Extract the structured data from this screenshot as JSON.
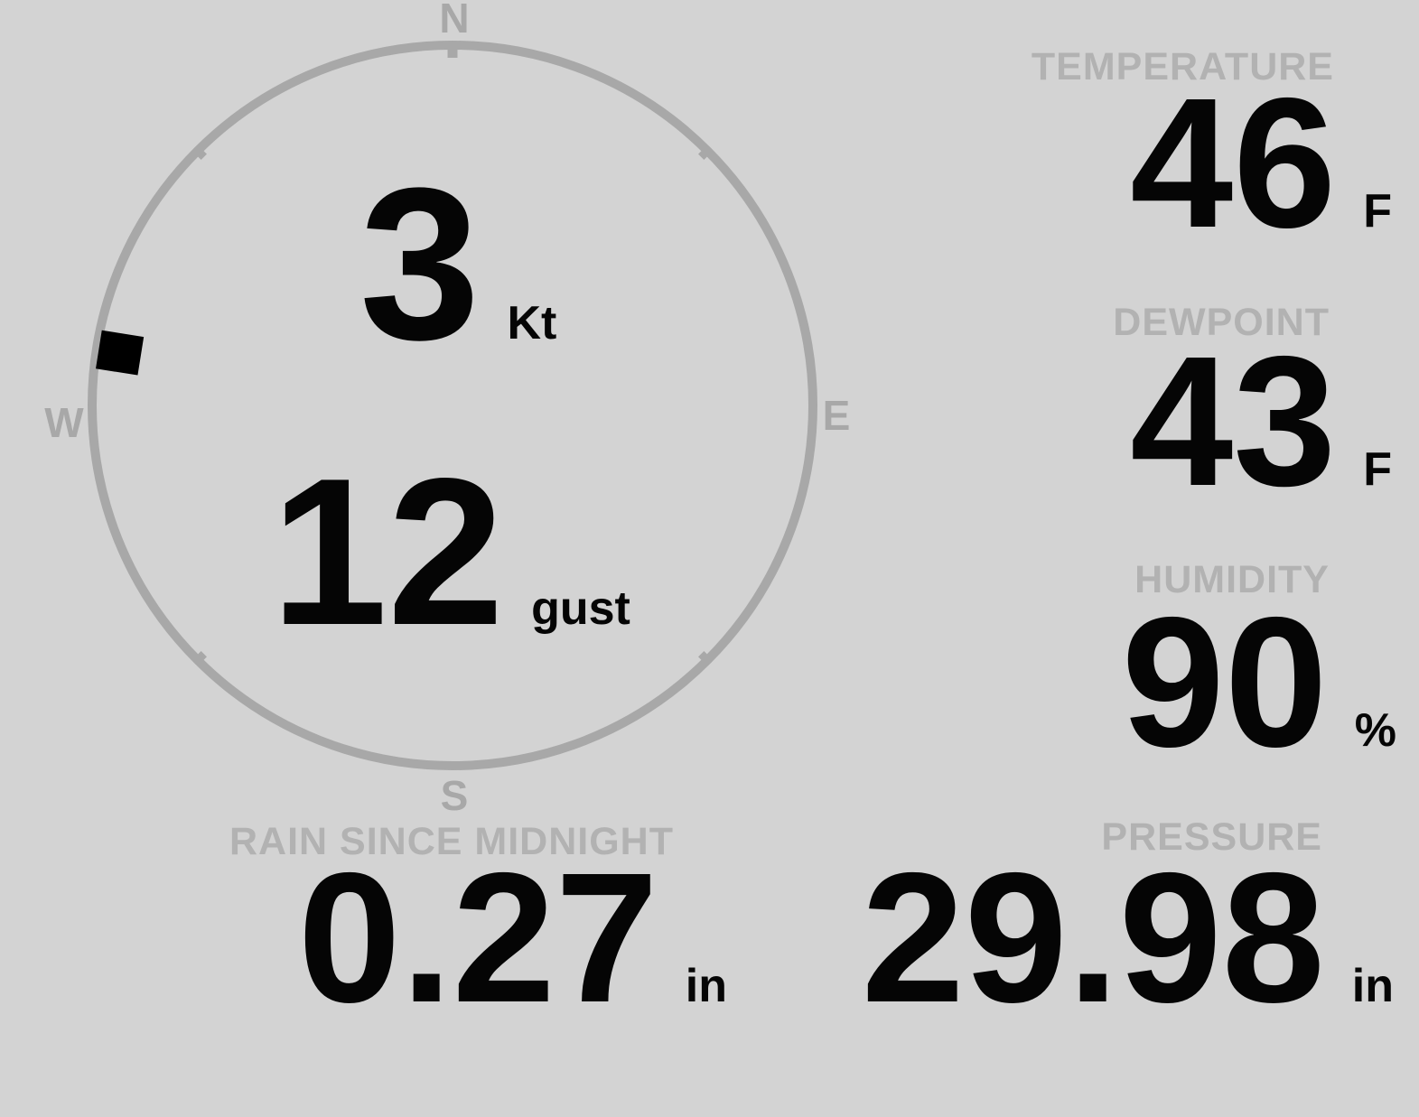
{
  "colors": {
    "background": "#d3d3d3",
    "compass": "#a8a8a8",
    "label": "#b2b2b2",
    "value": "#050505",
    "marker": "#000000"
  },
  "wind": {
    "speed": {
      "value": "3",
      "unit": "Kt"
    },
    "gust": {
      "value": "12",
      "unit": "gust"
    },
    "compass": {
      "north": "N",
      "east": "E",
      "south": "S",
      "west": "W",
      "direction_deg": 279
    }
  },
  "metrics": {
    "temperature": {
      "label": "TEMPERATURE",
      "value": "46",
      "unit": "F"
    },
    "dewpoint": {
      "label": "DEWPOINT",
      "value": "43",
      "unit": "F"
    },
    "humidity": {
      "label": "HUMIDITY",
      "value": "90",
      "unit": "%"
    },
    "rain": {
      "label": "RAIN SINCE MIDNIGHT",
      "value": "0.27",
      "unit": "in"
    },
    "pressure": {
      "label": "PRESSURE",
      "value": "29.98",
      "unit": "in"
    }
  }
}
